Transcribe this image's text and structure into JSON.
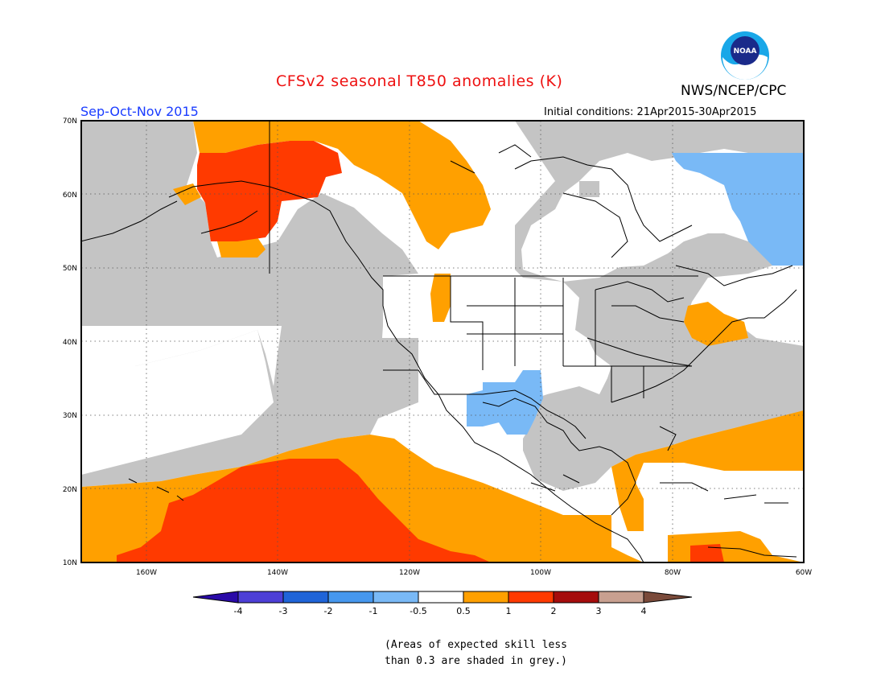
{
  "title": "CFSv2 seasonal T850 anomalies (K)",
  "agency": "NWS/NCEP/CPC",
  "logo_text": "NOAA",
  "season": "Sep-Oct-Nov 2015",
  "initial_conditions": "Initial conditions: 21Apr2015-30Apr2015",
  "skill_note_line1": "(Areas of expected skill less",
  "skill_note_line2": "than 0.3 are shaded in grey.)",
  "map": {
    "lat_labels": [
      "70N",
      "60N",
      "50N",
      "40N",
      "30N",
      "20N",
      "10N"
    ],
    "lon_labels": [
      "160W",
      "140W",
      "120W",
      "100W",
      "80W",
      "60W"
    ]
  },
  "legend": {
    "tick_labels": [
      "-4",
      "-3",
      "-2",
      "-1",
      "-0.5",
      "0.5",
      "1",
      "2",
      "3",
      "4"
    ],
    "bins": [
      {
        "range": "< -4",
        "color": "#2a0aa8"
      },
      {
        "range": "-4 to -3",
        "color": "#4d3fd6"
      },
      {
        "range": "-3 to -2",
        "color": "#1f64d8"
      },
      {
        "range": "-2 to -1",
        "color": "#4697ee"
      },
      {
        "range": "-1 to -0.5",
        "color": "#79b9f6"
      },
      {
        "range": "-0.5 to 0.5",
        "color": "#ffffff"
      },
      {
        "range": "0.5 to 1",
        "color": "#ffa000"
      },
      {
        "range": "1 to 2",
        "color": "#ff3a00"
      },
      {
        "range": "2 to 3",
        "color": "#a50c0c"
      },
      {
        "range": "3 to 4",
        "color": "#c8a090"
      },
      {
        "range": "> 4",
        "color": "#7a4a3a"
      }
    ]
  },
  "colors": {
    "skill_grey": "#c4c4c4",
    "title_red": "#ee1111",
    "season_blue": "#1a3cff"
  }
}
